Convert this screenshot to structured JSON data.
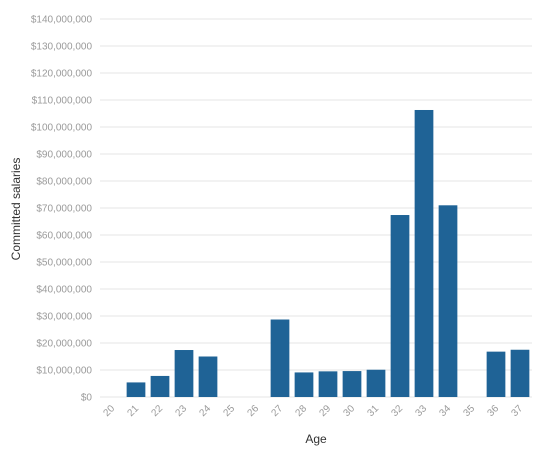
{
  "chart_data": {
    "type": "bar",
    "xlabel": "Age",
    "ylabel": "Committed salaries",
    "ylim": [
      0,
      140000000
    ],
    "y_tick_step": 10000000,
    "grid": true,
    "bar_color": "#1f6396",
    "categories": [
      "20",
      "21",
      "22",
      "23",
      "24",
      "25",
      "26",
      "27",
      "28",
      "29",
      "30",
      "31",
      "32",
      "33",
      "34",
      "35",
      "36",
      "37"
    ],
    "values": [
      0,
      5400000,
      7800000,
      17400000,
      15000000,
      0,
      0,
      28700000,
      9100000,
      9500000,
      9600000,
      10100000,
      67400000,
      106300000,
      71000000,
      0,
      16800000,
      17500000
    ]
  }
}
